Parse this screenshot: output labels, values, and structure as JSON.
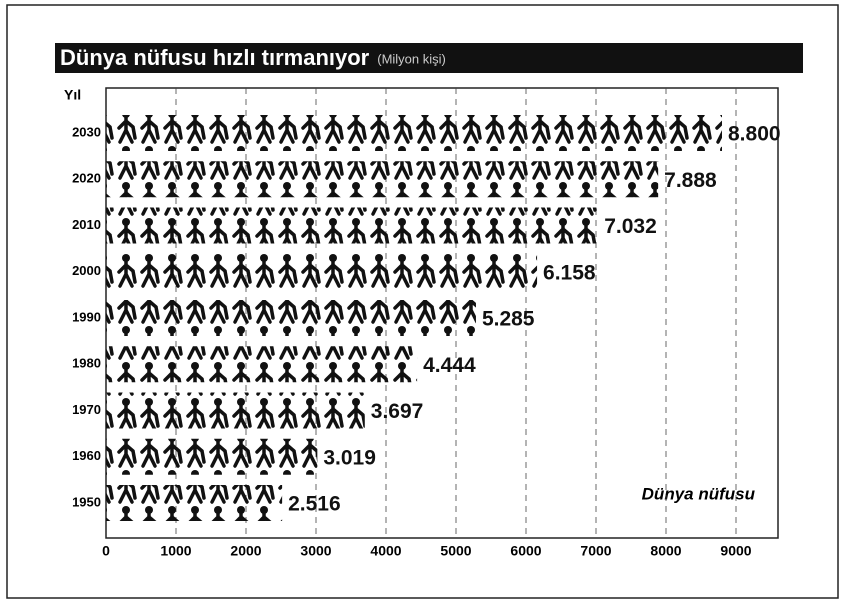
{
  "chart_data": {
    "type": "pictogram-bar",
    "title": "Dünya nüfusu hızlı tırmanıyor",
    "subtitle": "(Milyon kişi)",
    "y_label": "Yıl",
    "annotation": "Dünya nüfusu",
    "categories": [
      "1950",
      "1960",
      "1970",
      "1980",
      "1990",
      "2000",
      "2010",
      "2020",
      "2030"
    ],
    "values": [
      2516,
      3019,
      3697,
      4444,
      5285,
      6158,
      7032,
      7888,
      8800
    ],
    "value_labels": [
      "2.516",
      "3.019",
      "3.697",
      "4.444",
      "5.285",
      "6.158",
      "7.032",
      "7.888",
      "8.800"
    ],
    "color": "#111111",
    "xlim": [
      0,
      9600
    ],
    "xticks": [
      0,
      1000,
      2000,
      3000,
      4000,
      5000,
      6000,
      7000,
      8000,
      9000
    ],
    "grid": true
  }
}
